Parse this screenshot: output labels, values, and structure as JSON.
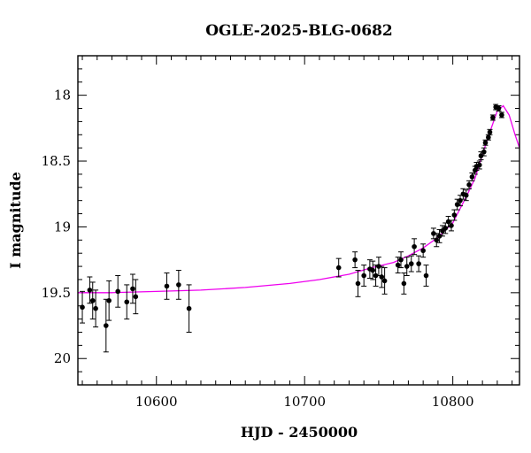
{
  "chart_data": {
    "type": "scatter",
    "title": "OGLE-2025-BLG-0682",
    "xlabel": "HJD - 2450000",
    "ylabel": "I magnitude",
    "xlim": [
      10547,
      10845
    ],
    "ylim": [
      20.2,
      17.7
    ],
    "y_inverted": true,
    "xticks": [
      10600,
      10700,
      10800
    ],
    "yticks": [
      18,
      18.5,
      19,
      19.5,
      20
    ],
    "xtick_labels": [
      "10600",
      "10700",
      "10800"
    ],
    "ytick_labels": [
      "18",
      "18.5",
      "19",
      "19.5",
      "20"
    ],
    "grid": false,
    "point_color": "#000000",
    "model_color": "#ee00ee",
    "series": [
      {
        "kind": "points-with-errorbars",
        "x": [
          10550,
          10555,
          10557,
          10559,
          10566,
          10568,
          10574,
          10580,
          10584,
          10586,
          10607,
          10615,
          10622,
          10723,
          10734,
          10736,
          10740,
          10744,
          10746,
          10748,
          10750,
          10752,
          10754,
          10763,
          10765,
          10767,
          10769,
          10772,
          10774,
          10777,
          10780,
          10782,
          10787,
          10789,
          10791,
          10793,
          10795,
          10797,
          10799,
          10801,
          10803,
          10805,
          10807,
          10809,
          10811,
          10813,
          10815,
          10816,
          10818,
          10819,
          10821,
          10822,
          10824,
          10825,
          10827,
          10829,
          10831,
          10833
        ],
        "y": [
          19.61,
          19.48,
          19.56,
          19.62,
          19.75,
          19.56,
          19.49,
          19.57,
          19.47,
          19.53,
          19.45,
          19.44,
          19.62,
          19.31,
          19.25,
          19.43,
          19.37,
          19.32,
          19.33,
          19.37,
          19.3,
          19.38,
          19.41,
          19.29,
          19.25,
          19.43,
          19.3,
          19.28,
          19.15,
          19.28,
          19.18,
          19.37,
          19.05,
          19.1,
          19.07,
          19.03,
          19.01,
          18.96,
          18.99,
          18.91,
          18.83,
          18.8,
          18.75,
          18.76,
          18.68,
          18.62,
          18.57,
          18.54,
          18.53,
          18.46,
          18.43,
          18.36,
          18.32,
          18.28,
          18.17,
          18.09,
          18.1,
          18.15
        ],
        "err": [
          0.12,
          0.1,
          0.14,
          0.14,
          0.2,
          0.15,
          0.12,
          0.13,
          0.11,
          0.13,
          0.1,
          0.11,
          0.18,
          0.07,
          0.06,
          0.1,
          0.08,
          0.07,
          0.07,
          0.08,
          0.07,
          0.08,
          0.1,
          0.06,
          0.06,
          0.08,
          0.07,
          0.06,
          0.06,
          0.06,
          0.05,
          0.08,
          0.04,
          0.05,
          0.05,
          0.04,
          0.04,
          0.04,
          0.04,
          0.04,
          0.04,
          0.04,
          0.04,
          0.04,
          0.03,
          0.03,
          0.03,
          0.03,
          0.03,
          0.03,
          0.03,
          0.02,
          0.02,
          0.02,
          0.02,
          0.02,
          0.02,
          0.02
        ]
      },
      {
        "kind": "model-curve",
        "x": [
          10547,
          10570,
          10600,
          10630,
          10660,
          10690,
          10710,
          10730,
          10745,
          10760,
          10770,
          10780,
          10790,
          10800,
          10810,
          10815,
          10820,
          10825,
          10830,
          10834,
          10838,
          10842,
          10845
        ],
        "y": [
          19.5,
          19.5,
          19.49,
          19.48,
          19.46,
          19.43,
          19.4,
          19.36,
          19.31,
          19.27,
          19.22,
          19.16,
          19.08,
          18.97,
          18.75,
          18.63,
          18.45,
          18.28,
          18.12,
          18.08,
          18.15,
          18.3,
          18.4
        ]
      }
    ]
  }
}
